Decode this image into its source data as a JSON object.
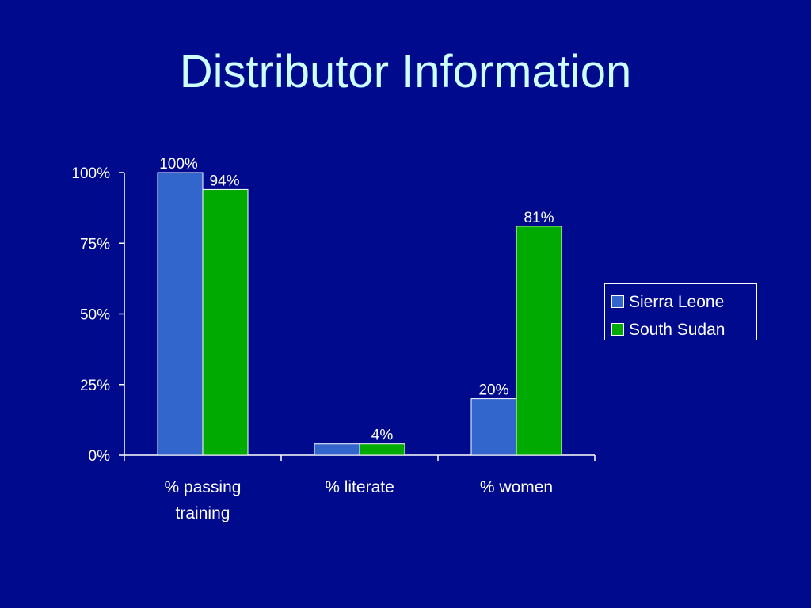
{
  "slide": {
    "title": "Distributor Information"
  },
  "colors": {
    "background": "#000a8c",
    "title": "#ccffff",
    "axis": "#ffffff"
  },
  "chart_data": {
    "type": "bar",
    "title": "",
    "xlabel": "",
    "ylabel": "",
    "categories": [
      [
        "% passing",
        "training"
      ],
      [
        "% literate"
      ],
      [
        "% women"
      ]
    ],
    "series": [
      {
        "name": "Sierra Leone",
        "color": "#3366cc",
        "values": [
          100,
          4,
          20
        ],
        "labels": [
          "100%",
          "",
          "20%"
        ]
      },
      {
        "name": "South Sudan",
        "color": "#00aa00",
        "values": [
          94,
          4,
          81
        ],
        "labels": [
          "94%",
          "4%",
          "81%"
        ]
      }
    ],
    "yticks": [
      "0%",
      "25%",
      "50%",
      "75%",
      "100%"
    ],
    "ylim": [
      0,
      100
    ],
    "grid": false,
    "legend": "right"
  }
}
